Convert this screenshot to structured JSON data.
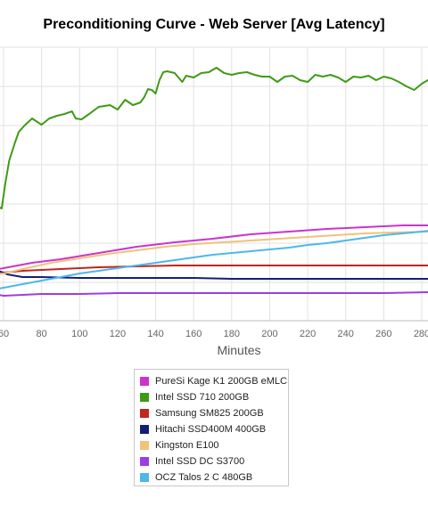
{
  "title": "Preconditioning Curve - Web Server [Avg Latency]",
  "chart_data": {
    "type": "line",
    "title": "Preconditioning Curve - Web Server [Avg Latency]",
    "xlabel": "Minutes",
    "ylabel": "",
    "x_ticks": [
      60,
      80,
      100,
      120,
      140,
      160,
      180,
      200,
      220,
      240,
      260,
      280
    ],
    "xlim": [
      55,
      284
    ],
    "grid": true,
    "legend_position": "bottom",
    "series": [
      {
        "name": "PureSi Kage K1 200GB eMLC",
        "color": "#cc33cc",
        "points": [
          [
            55,
            303
          ],
          [
            60,
            301
          ],
          [
            75,
            295
          ],
          [
            90,
            291
          ],
          [
            110,
            284
          ],
          [
            130,
            277
          ],
          [
            150,
            272
          ],
          [
            170,
            268
          ],
          [
            190,
            263
          ],
          [
            210,
            260
          ],
          [
            230,
            257
          ],
          [
            250,
            255
          ],
          [
            270,
            253
          ],
          [
            284,
            253
          ]
        ]
      },
      {
        "name": "Intel SSD 710 200GB",
        "color": "#3f9a16",
        "points": [
          [
            55,
            228
          ],
          [
            57,
            232
          ],
          [
            59,
            234
          ],
          [
            61,
            205
          ],
          [
            63,
            180
          ],
          [
            66,
            160
          ],
          [
            68,
            148
          ],
          [
            71,
            141
          ],
          [
            75,
            133
          ],
          [
            80,
            140
          ],
          [
            84,
            133
          ],
          [
            88,
            130
          ],
          [
            92,
            128
          ],
          [
            96,
            125
          ],
          [
            98,
            133
          ],
          [
            101,
            134
          ],
          [
            105,
            128
          ],
          [
            110,
            120
          ],
          [
            116,
            118
          ],
          [
            120,
            123
          ],
          [
            124,
            112
          ],
          [
            128,
            118
          ],
          [
            132,
            115
          ],
          [
            134,
            109
          ],
          [
            136,
            100
          ],
          [
            138,
            101
          ],
          [
            140,
            105
          ],
          [
            142,
            90
          ],
          [
            144,
            81
          ],
          [
            146,
            80
          ],
          [
            150,
            82
          ],
          [
            154,
            92
          ],
          [
            156,
            85
          ],
          [
            160,
            87
          ],
          [
            164,
            82
          ],
          [
            168,
            81
          ],
          [
            172,
            76
          ],
          [
            176,
            82
          ],
          [
            180,
            84
          ],
          [
            184,
            82
          ],
          [
            188,
            81
          ],
          [
            192,
            84
          ],
          [
            196,
            86
          ],
          [
            200,
            86
          ],
          [
            204,
            92
          ],
          [
            208,
            86
          ],
          [
            212,
            85
          ],
          [
            216,
            90
          ],
          [
            220,
            92
          ],
          [
            224,
            84
          ],
          [
            228,
            86
          ],
          [
            232,
            84
          ],
          [
            236,
            87
          ],
          [
            240,
            92
          ],
          [
            244,
            86
          ],
          [
            248,
            87
          ],
          [
            252,
            85
          ],
          [
            256,
            90
          ],
          [
            260,
            86
          ],
          [
            264,
            88
          ],
          [
            268,
            92
          ],
          [
            272,
            97
          ],
          [
            276,
            101
          ],
          [
            280,
            94
          ],
          [
            284,
            89
          ]
        ]
      },
      {
        "name": "Samsung SM825 200GB",
        "color": "#c0261e",
        "points": [
          [
            55,
            304
          ],
          [
            60,
            306
          ],
          [
            70,
            304
          ],
          [
            90,
            302
          ],
          [
            110,
            300
          ],
          [
            130,
            299
          ],
          [
            150,
            298
          ],
          [
            170,
            298
          ],
          [
            190,
            298
          ],
          [
            210,
            298
          ],
          [
            230,
            298
          ],
          [
            250,
            298
          ],
          [
            270,
            298
          ],
          [
            284,
            298
          ]
        ]
      },
      {
        "name": "Hitachi SSD400M 400GB",
        "color": "#141e7a",
        "points": [
          [
            55,
            302
          ],
          [
            62,
            308
          ],
          [
            70,
            311
          ],
          [
            80,
            311
          ],
          [
            100,
            312
          ],
          [
            120,
            312
          ],
          [
            140,
            312
          ],
          [
            160,
            312
          ],
          [
            180,
            313
          ],
          [
            200,
            313
          ],
          [
            220,
            313
          ],
          [
            240,
            313
          ],
          [
            260,
            313
          ],
          [
            284,
            313
          ]
        ]
      },
      {
        "name": "Kingston E100",
        "color": "#f0c27a",
        "points": [
          [
            55,
            308
          ],
          [
            60,
            307
          ],
          [
            70,
            302
          ],
          [
            85,
            295
          ],
          [
            100,
            290
          ],
          [
            115,
            285
          ],
          [
            130,
            281
          ],
          [
            145,
            277
          ],
          [
            160,
            274
          ],
          [
            175,
            272
          ],
          [
            190,
            270
          ],
          [
            205,
            268
          ],
          [
            220,
            266
          ],
          [
            235,
            264
          ],
          [
            250,
            262
          ],
          [
            265,
            261
          ],
          [
            284,
            260
          ]
        ]
      },
      {
        "name": "Intel SSD DC S3700",
        "color": "#9b3fe0",
        "points": [
          [
            55,
            330
          ],
          [
            60,
            332
          ],
          [
            80,
            330
          ],
          [
            100,
            330
          ],
          [
            120,
            329
          ],
          [
            140,
            329
          ],
          [
            160,
            329
          ],
          [
            180,
            329
          ],
          [
            200,
            329
          ],
          [
            220,
            329
          ],
          [
            240,
            329
          ],
          [
            260,
            329
          ],
          [
            284,
            328
          ]
        ]
      },
      {
        "name": "OCZ Talos 2 C 480GB",
        "color": "#4cb8e8",
        "points": [
          [
            55,
            325
          ],
          [
            60,
            323
          ],
          [
            70,
            319
          ],
          [
            80,
            315
          ],
          [
            90,
            311
          ],
          [
            100,
            307
          ],
          [
            110,
            304
          ],
          [
            120,
            301
          ],
          [
            130,
            298
          ],
          [
            140,
            295
          ],
          [
            150,
            292
          ],
          [
            160,
            289
          ],
          [
            170,
            286
          ],
          [
            180,
            284
          ],
          [
            190,
            282
          ],
          [
            200,
            280
          ],
          [
            210,
            278
          ],
          [
            220,
            275
          ],
          [
            230,
            273
          ],
          [
            240,
            270
          ],
          [
            250,
            267
          ],
          [
            260,
            264
          ],
          [
            270,
            262
          ],
          [
            280,
            260
          ],
          [
            284,
            259
          ]
        ]
      }
    ]
  }
}
